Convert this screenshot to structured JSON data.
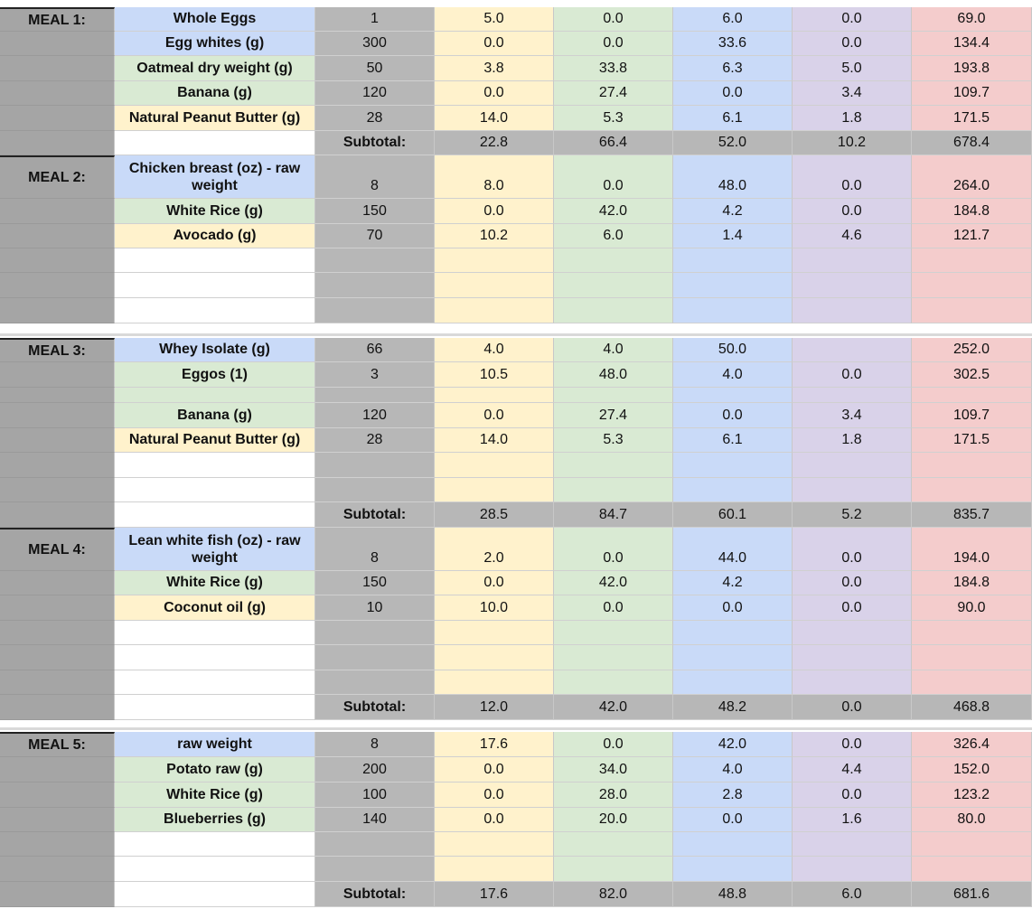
{
  "colors": {
    "blue": "#c9daf8",
    "green": "#d9ead3",
    "yellow": "#fff2cc",
    "purple": "#d9d2e9",
    "red": "#f4cccc",
    "gray": "#b7b7b7"
  },
  "rows": [
    {
      "meal": "MEAL 1:",
      "food": "Whole Eggs",
      "color": "blue",
      "qty": "1",
      "v": [
        "5.0",
        "0.0",
        "6.0",
        "0.0",
        "69.0"
      ]
    },
    {
      "meal": "",
      "food": "Egg whites (g)",
      "color": "blue",
      "qty": "300",
      "v": [
        "0.0",
        "0.0",
        "33.6",
        "0.0",
        "134.4"
      ]
    },
    {
      "meal": "",
      "food": "Oatmeal dry weight (g)",
      "color": "green",
      "qty": "50",
      "v": [
        "3.8",
        "33.8",
        "6.3",
        "5.0",
        "193.8"
      ]
    },
    {
      "meal": "",
      "food": "Banana (g)",
      "color": "green",
      "qty": "120",
      "v": [
        "0.0",
        "27.4",
        "0.0",
        "3.4",
        "109.7"
      ]
    },
    {
      "meal": "",
      "food": "Natural Peanut Butter (g)",
      "color": "yellow",
      "qty": "28",
      "v": [
        "14.0",
        "5.3",
        "6.1",
        "1.8",
        "171.5"
      ]
    },
    {
      "meal": "",
      "food": "",
      "color": "white",
      "qty": "Subtotal:",
      "v": [
        "22.8",
        "66.4",
        "52.0",
        "10.2",
        "678.4"
      ],
      "subtotal": true
    },
    {
      "meal": "MEAL 2:",
      "food": "Chicken breast (oz) - raw weight",
      "color": "blue",
      "qty": "8",
      "v": [
        "8.0",
        "0.0",
        "48.0",
        "0.0",
        "264.0"
      ]
    },
    {
      "meal": "",
      "food": "White Rice  (g)",
      "color": "green",
      "qty": "150",
      "v": [
        "0.0",
        "42.0",
        "4.2",
        "0.0",
        "184.8"
      ]
    },
    {
      "meal": "",
      "food": "Avocado (g)",
      "color": "yellow",
      "qty": "70",
      "v": [
        "10.2",
        "6.0",
        "1.4",
        "4.6",
        "121.7"
      ]
    },
    {
      "meal": "",
      "food": "",
      "color": "white",
      "qty": "",
      "v": [
        "",
        "",
        "",
        "",
        ""
      ]
    },
    {
      "meal": "",
      "food": "",
      "color": "white",
      "qty": "",
      "v": [
        "",
        "",
        "",
        "",
        ""
      ]
    },
    {
      "meal": "",
      "food": "",
      "color": "white",
      "qty": "",
      "v": [
        "",
        "",
        "",
        "",
        ""
      ]
    },
    {
      "meal": "MEAL 3:",
      "food": "Whey Isolate (g)",
      "color": "blue",
      "qty": "66",
      "v": [
        "4.0",
        "4.0",
        "50.0",
        "",
        "252.0"
      ]
    },
    {
      "meal": "",
      "food": "Eggos (1)",
      "color": "green",
      "qty": "3",
      "v": [
        "10.5",
        "48.0",
        "4.0",
        "0.0",
        "302.5"
      ]
    },
    {
      "meal": "",
      "food": "",
      "color": "green",
      "qty": "",
      "v": [
        "",
        "",
        "",
        "",
        ""
      ]
    },
    {
      "meal": "",
      "food": "Banana (g)",
      "color": "green",
      "qty": "120",
      "v": [
        "0.0",
        "27.4",
        "0.0",
        "3.4",
        "109.7"
      ]
    },
    {
      "meal": "",
      "food": "Natural Peanut Butter (g)",
      "color": "yellow",
      "qty": "28",
      "v": [
        "14.0",
        "5.3",
        "6.1",
        "1.8",
        "171.5"
      ]
    },
    {
      "meal": "",
      "food": "",
      "color": "white",
      "qty": "",
      "v": [
        "",
        "",
        "",
        "",
        ""
      ]
    },
    {
      "meal": "",
      "food": "",
      "color": "white",
      "qty": "",
      "v": [
        "",
        "",
        "",
        "",
        ""
      ]
    },
    {
      "meal": "",
      "food": "",
      "color": "white",
      "qty": "Subtotal:",
      "v": [
        "28.5",
        "84.7",
        "60.1",
        "5.2",
        "835.7"
      ],
      "subtotal": true
    },
    {
      "meal": "MEAL 4:",
      "food": "Lean white fish (oz) - raw weight",
      "color": "blue",
      "qty": "8",
      "v": [
        "2.0",
        "0.0",
        "44.0",
        "0.0",
        "194.0"
      ]
    },
    {
      "meal": "",
      "food": "White Rice  (g)",
      "color": "green",
      "qty": "150",
      "v": [
        "0.0",
        "42.0",
        "4.2",
        "0.0",
        "184.8"
      ]
    },
    {
      "meal": "",
      "food": "Coconut oil (g)",
      "color": "yellow",
      "qty": "10",
      "v": [
        "10.0",
        "0.0",
        "0.0",
        "0.0",
        "90.0"
      ]
    },
    {
      "meal": "",
      "food": "",
      "color": "white",
      "qty": "",
      "v": [
        "",
        "",
        "",
        "",
        ""
      ]
    },
    {
      "meal": "",
      "food": "",
      "color": "white",
      "qty": "",
      "v": [
        "",
        "",
        "",
        "",
        ""
      ]
    },
    {
      "meal": "",
      "food": "",
      "color": "white",
      "qty": "",
      "v": [
        "",
        "",
        "",
        "",
        ""
      ]
    },
    {
      "meal": "",
      "food": "",
      "color": "white",
      "qty": "Subtotal:",
      "v": [
        "12.0",
        "42.0",
        "48.2",
        "0.0",
        "468.8"
      ],
      "subtotal": true
    },
    {
      "meal": "MEAL 5:",
      "food": "raw weight",
      "color": "blue",
      "qty": "8",
      "v": [
        "17.6",
        "0.0",
        "42.0",
        "0.0",
        "326.4"
      ]
    },
    {
      "meal": "",
      "food": "Potato raw (g)",
      "color": "green",
      "qty": "200",
      "v": [
        "0.0",
        "34.0",
        "4.0",
        "4.4",
        "152.0"
      ]
    },
    {
      "meal": "",
      "food": "White Rice  (g)",
      "color": "green",
      "qty": "100",
      "v": [
        "0.0",
        "28.0",
        "2.8",
        "0.0",
        "123.2"
      ]
    },
    {
      "meal": "",
      "food": "Blueberries (g)",
      "color": "green",
      "qty": "140",
      "v": [
        "0.0",
        "20.0",
        "0.0",
        "1.6",
        "80.0"
      ]
    },
    {
      "meal": "",
      "food": "",
      "color": "white",
      "qty": "",
      "v": [
        "",
        "",
        "",
        "",
        ""
      ]
    },
    {
      "meal": "",
      "food": "",
      "color": "white",
      "qty": "",
      "v": [
        "",
        "",
        "",
        "",
        ""
      ]
    },
    {
      "meal": "",
      "food": "",
      "color": "white",
      "qty": "Subtotal:",
      "v": [
        "17.6",
        "82.0",
        "48.8",
        "6.0",
        "681.6"
      ],
      "subtotal": true
    }
  ]
}
